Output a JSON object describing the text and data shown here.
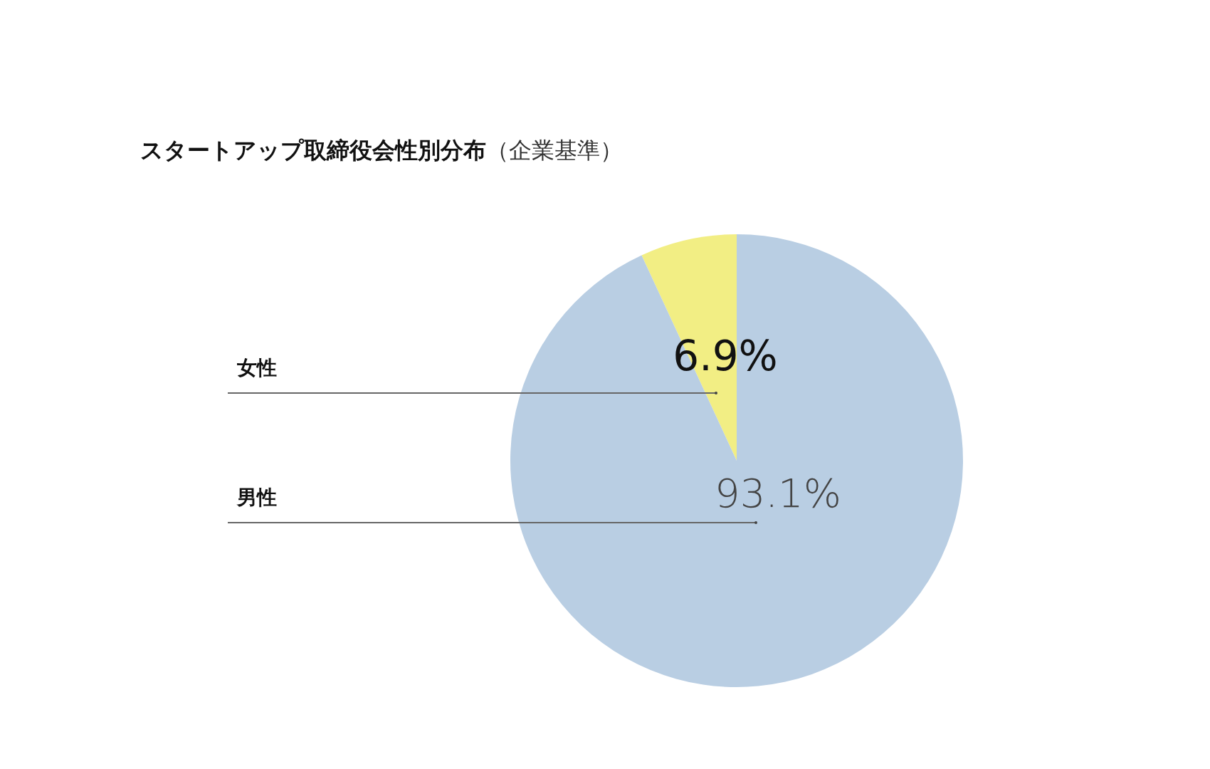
{
  "chart_data": {
    "type": "pie",
    "title": "スタートアップ取締役会性別分布",
    "subtitle": "（企業基準）",
    "categories": [
      "女性",
      "男性"
    ],
    "values": [
      6.9,
      93.1
    ],
    "colors": [
      "#f2ee84",
      "#b9cee3"
    ],
    "value_labels": [
      "6.9%",
      "93.1%"
    ]
  }
}
